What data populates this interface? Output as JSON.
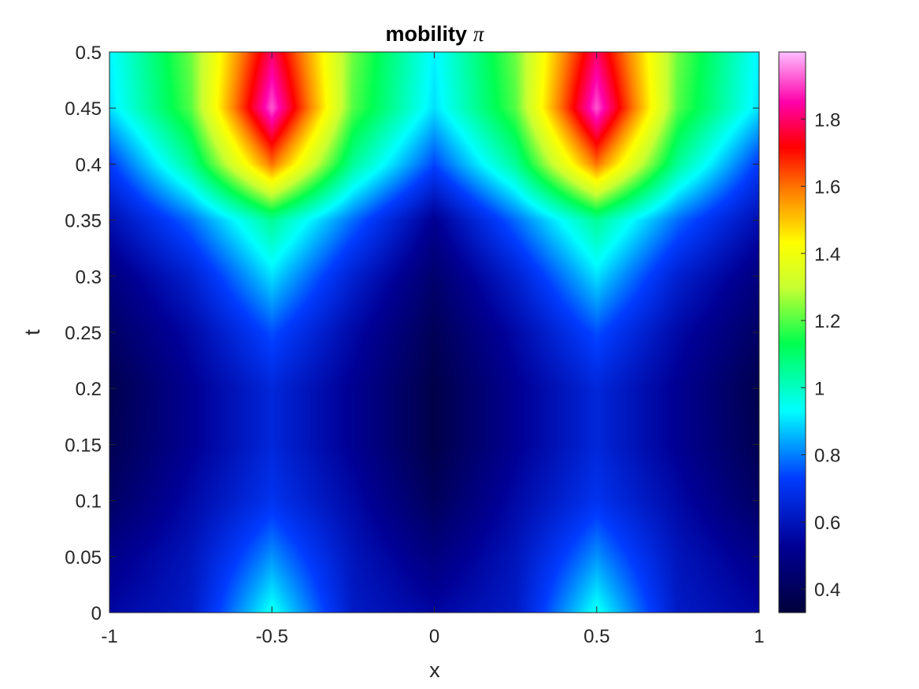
{
  "chart_data": {
    "type": "heatmap",
    "title": "mobility",
    "title_symbol": "π",
    "xlabel": "x",
    "ylabel": "t",
    "xlim": [
      -1,
      1
    ],
    "ylim": [
      0,
      0.5
    ],
    "xticks": [
      -1,
      -0.5,
      0,
      0.5,
      1
    ],
    "xtick_labels": [
      "-1",
      "-0.5",
      "0",
      "0.5",
      "1"
    ],
    "yticks": [
      0,
      0.05,
      0.1,
      0.15,
      0.2,
      0.25,
      0.3,
      0.35,
      0.4,
      0.45,
      0.5
    ],
    "ytick_labels": [
      "0",
      "0.05",
      "0.1",
      "0.15",
      "0.2",
      "0.25",
      "0.3",
      "0.35",
      "0.4",
      "0.45",
      "0.5"
    ],
    "colormap": "hsv-like (navy → blue → cyan → green → yellow → orange → red → magenta → pink)",
    "colorbar": {
      "clim": [
        0.33,
        2.0
      ],
      "ticks": [
        0.4,
        0.6,
        0.8,
        1,
        1.2,
        1.4,
        1.6,
        1.8
      ],
      "tick_labels": [
        "0.4",
        "0.6",
        "0.8",
        "1",
        "1.2",
        "1.4",
        "1.6",
        "1.8"
      ]
    },
    "grid": false,
    "x": [
      -1,
      -0.75,
      -0.5,
      -0.25,
      0,
      0.25,
      0.5,
      0.75,
      1
    ],
    "t": [
      0,
      0.05,
      0.1,
      0.15,
      0.2,
      0.25,
      0.3,
      0.35,
      0.4,
      0.45,
      0.5
    ],
    "z": [
      [
        0.55,
        0.62,
        0.95,
        0.62,
        0.55,
        0.62,
        0.95,
        0.62,
        0.55
      ],
      [
        0.5,
        0.6,
        0.82,
        0.6,
        0.48,
        0.6,
        0.82,
        0.6,
        0.5
      ],
      [
        0.42,
        0.56,
        0.7,
        0.56,
        0.4,
        0.56,
        0.7,
        0.56,
        0.42
      ],
      [
        0.38,
        0.52,
        0.66,
        0.52,
        0.36,
        0.52,
        0.66,
        0.52,
        0.38
      ],
      [
        0.37,
        0.52,
        0.66,
        0.52,
        0.36,
        0.52,
        0.66,
        0.52,
        0.37
      ],
      [
        0.42,
        0.56,
        0.75,
        0.56,
        0.39,
        0.56,
        0.75,
        0.56,
        0.42
      ],
      [
        0.48,
        0.64,
        0.9,
        0.64,
        0.44,
        0.64,
        0.9,
        0.64,
        0.48
      ],
      [
        0.58,
        0.78,
        1.05,
        0.78,
        0.52,
        0.78,
        1.05,
        0.78,
        0.58
      ],
      [
        0.72,
        1.05,
        1.6,
        1.05,
        0.74,
        1.05,
        1.6,
        1.05,
        0.72
      ],
      [
        0.9,
        1.2,
        1.92,
        1.2,
        0.9,
        1.2,
        1.92,
        1.2,
        0.9
      ],
      [
        0.92,
        1.22,
        1.8,
        1.22,
        0.92,
        1.22,
        1.8,
        1.22,
        0.92
      ]
    ]
  }
}
